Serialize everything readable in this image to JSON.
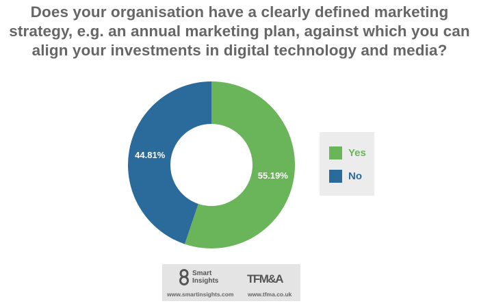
{
  "chart_data": {
    "type": "pie",
    "variant": "donut",
    "title": "Does your organisation have a clearly defined marketing strategy, e.g. an annual marketing plan, against which you can align your investments in digital technology and media?",
    "categories": [
      "Yes",
      "No"
    ],
    "values": [
      55.19,
      44.81
    ],
    "data_labels": [
      "55.19%",
      "44.81%"
    ],
    "colors": [
      "#6ab55a",
      "#2a6b9b"
    ],
    "legend": {
      "position": "right",
      "entries": [
        "Yes",
        "No"
      ],
      "label_color": "#2a6b9b"
    }
  },
  "footer": {
    "logo_left_line1": "Smart",
    "logo_left_line2": "Insights",
    "logo_right": "TFM&A",
    "url_left": "www.smartinsights.com",
    "url_right": "www.tfma.co.uk"
  }
}
